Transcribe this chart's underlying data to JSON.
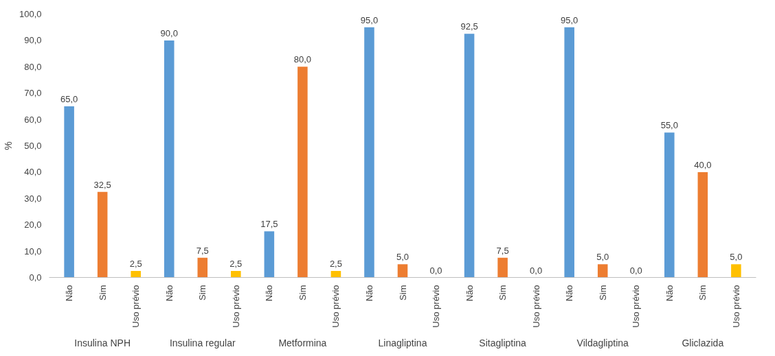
{
  "chart_data": {
    "type": "bar",
    "ylabel": "%",
    "categories": [
      "Não",
      "Sim",
      "Uso prévio",
      "Não",
      "Sim",
      "Uso prévio",
      "Não",
      "Sim",
      "Uso prévio",
      "Não",
      "Sim",
      "Uso prévio",
      "Não",
      "Sim",
      "Uso prévio",
      "Não",
      "Sim",
      "Uso prévio",
      "Não",
      "Sim",
      "Uso prévio"
    ],
    "values": [
      65.0,
      32.5,
      2.5,
      90.0,
      7.5,
      2.5,
      17.5,
      80.0,
      2.5,
      95.0,
      5.0,
      0.0,
      92.5,
      7.5,
      0.0,
      95.0,
      5.0,
      0.0,
      55.0,
      40.0,
      5.0
    ],
    "colors": [
      "#5b9bd5",
      "#ed7d31",
      "#ffc000",
      "#5b9bd5",
      "#ed7d31",
      "#ffc000",
      "#5b9bd5",
      "#ed7d31",
      "#ffc000",
      "#5b9bd5",
      "#ed7d31",
      "#ffc000",
      "#5b9bd5",
      "#ed7d31",
      "#ffc000",
      "#5b9bd5",
      "#ed7d31",
      "#ffc000",
      "#5b9bd5",
      "#ed7d31",
      "#ffc000"
    ],
    "value_labels": [
      "65,0",
      "32,5",
      "2,5",
      "90,0",
      "7,5",
      "2,5",
      "17,5",
      "80,0",
      "2,5",
      "95,0",
      "5,0",
      "0,0",
      "92,5",
      "7,5",
      "0,0",
      "95,0",
      "5,0",
      "0,0",
      "55,0",
      "40,0",
      "5,0"
    ],
    "annotations": [
      "Insulina NPH",
      "Insulina regular",
      "Metformina",
      "Linagliptina",
      "Sitagliptina",
      "Vildagliptina",
      "Gliclazida"
    ],
    "ylim": [
      0,
      100
    ],
    "yticks": [
      {
        "value": 0,
        "label": "0,0"
      },
      {
        "value": 10,
        "label": "10,0"
      },
      {
        "value": 20,
        "label": "20,0"
      },
      {
        "value": 30,
        "label": "30,0"
      },
      {
        "value": 40,
        "label": "40,0"
      },
      {
        "value": 50,
        "label": "50,0"
      },
      {
        "value": 60,
        "label": "60,0"
      },
      {
        "value": 70,
        "label": "70,0"
      },
      {
        "value": 80,
        "label": "80,0"
      },
      {
        "value": 90,
        "label": "90,0"
      },
      {
        "value": 100,
        "label": "100,0"
      }
    ],
    "grid": false
  }
}
